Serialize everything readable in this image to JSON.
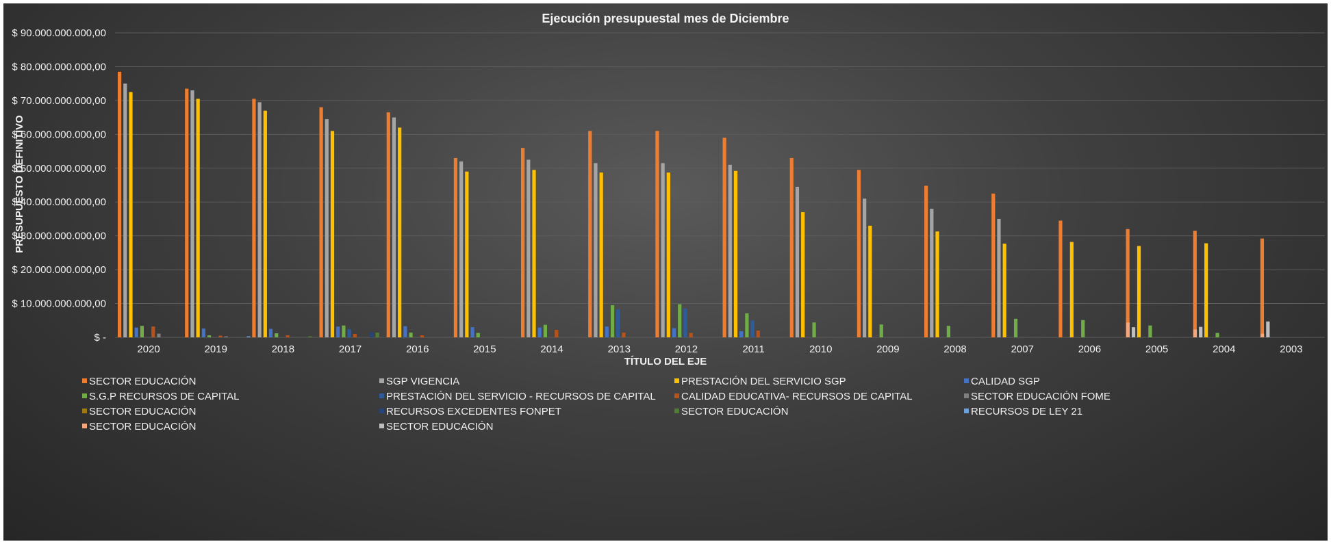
{
  "chart_data": {
    "type": "bar",
    "title": "Ejecución presupuestal mes de Diciembre",
    "xlabel": "TÍTULO DEL EJE",
    "ylabel": "PRESUPUESTO DEFINITIVO",
    "ylim": [
      0,
      90000000000
    ],
    "y_ticks": [
      {
        "value": 0,
        "label": "$ -"
      },
      {
        "value": 10000000000,
        "label": "$ 10.000.000.000,00"
      },
      {
        "value": 20000000000,
        "label": "$ 20.000.000.000,00"
      },
      {
        "value": 30000000000,
        "label": "$ 30.000.000.000,00"
      },
      {
        "value": 40000000000,
        "label": "$ 40.000.000.000,00"
      },
      {
        "value": 50000000000,
        "label": "$ 50.000.000.000,00"
      },
      {
        "value": 60000000000,
        "label": "$ 60.000.000.000,00"
      },
      {
        "value": 70000000000,
        "label": "$ 70.000.000.000,00"
      },
      {
        "value": 80000000000,
        "label": "$ 80.000.000.000,00"
      },
      {
        "value": 90000000000,
        "label": "$ 90.000.000.000,00"
      }
    ],
    "grid": true,
    "legend_position": "bottom",
    "categories": [
      "2020",
      "2019",
      "2018",
      "2017",
      "2016",
      "2015",
      "2014",
      "2013",
      "2012",
      "2011",
      "2010",
      "2009",
      "2008",
      "2007",
      "2006",
      "2005",
      "2004",
      "2003"
    ],
    "series": [
      {
        "name": "SECTOR EDUCACIÓN",
        "color": "#ed7d31",
        "values": [
          78500000000,
          73500000000,
          70500000000,
          68000000000,
          66500000000,
          53000000000,
          56000000000,
          61000000000,
          61000000000,
          59000000000,
          53000000000,
          49500000000,
          44800000000,
          42500000000,
          34500000000,
          32000000000,
          31500000000,
          29200000000
        ]
      },
      {
        "name": "SGP VIGENCIA",
        "color": "#a5a5a5",
        "values": [
          75000000000,
          73000000000,
          69500000000,
          64500000000,
          65000000000,
          52000000000,
          52500000000,
          51500000000,
          51500000000,
          51000000000,
          44500000000,
          41000000000,
          38000000000,
          35000000000,
          0,
          0,
          0,
          0
        ]
      },
      {
        "name": "PRESTACIÓN DEL SERVICIO SGP",
        "color": "#ffc000",
        "values": [
          72500000000,
          70500000000,
          67000000000,
          61000000000,
          62000000000,
          49000000000,
          49500000000,
          48700000000,
          48700000000,
          49200000000,
          37000000000,
          33000000000,
          31300000000,
          27700000000,
          28200000000,
          27000000000,
          27800000000,
          0
        ]
      },
      {
        "name": "CALIDAD SGP",
        "color": "#4472c4",
        "values": [
          2900000000,
          2600000000,
          2500000000,
          3200000000,
          3300000000,
          3000000000,
          2900000000,
          3200000000,
          2700000000,
          1800000000,
          0,
          0,
          0,
          0,
          0,
          0,
          0,
          0
        ]
      },
      {
        "name": "S.G.P RECURSOS DE CAPITAL",
        "color": "#70ad47",
        "values": [
          3400000000,
          600000000,
          1200000000,
          3500000000,
          1400000000,
          1300000000,
          3700000000,
          9500000000,
          9800000000,
          7100000000,
          4400000000,
          3800000000,
          3400000000,
          5500000000,
          5100000000,
          3500000000,
          1300000000,
          0
        ]
      },
      {
        "name": "PRESTACIÓN DEL SERVICIO - RECURSOS DE CAPITAL",
        "color": "#2e5c9a",
        "values": [
          0,
          0,
          0,
          2400000000,
          0,
          0,
          0,
          8300000000,
          8500000000,
          5000000000,
          0,
          0,
          0,
          0,
          0,
          0,
          0,
          0
        ]
      },
      {
        "name": "CALIDAD EDUCATIVA- RECURSOS DE CAPITAL",
        "color": "#b8521b",
        "values": [
          3200000000,
          500000000,
          600000000,
          1000000000,
          600000000,
          0,
          2200000000,
          1400000000,
          1300000000,
          2000000000,
          0,
          0,
          0,
          0,
          0,
          0,
          0,
          0
        ]
      },
      {
        "name": "SECTOR EDUCACIÓN FOME",
        "color": "#7f7f7f",
        "values": [
          1100000000,
          300000000,
          0,
          0,
          0,
          0,
          0,
          0,
          0,
          0,
          0,
          0,
          0,
          0,
          0,
          0,
          0,
          0
        ]
      },
      {
        "name": "SECTOR EDUCACIÓN",
        "color": "#9c7a10",
        "values": [
          0,
          0,
          0,
          0,
          0,
          0,
          0,
          0,
          0,
          0,
          0,
          0,
          0,
          0,
          0,
          0,
          0,
          0
        ]
      },
      {
        "name": "RECURSOS EXCEDENTES FONPET",
        "color": "#26447a",
        "values": [
          0,
          0,
          0,
          1500000000,
          0,
          0,
          0,
          0,
          0,
          0,
          0,
          0,
          0,
          0,
          0,
          0,
          0,
          0
        ]
      },
      {
        "name": "SECTOR EDUCACIÓN",
        "color": "#4e7d31",
        "values": [
          0,
          0,
          300000000,
          1400000000,
          0,
          0,
          0,
          0,
          0,
          0,
          0,
          0,
          0,
          0,
          0,
          0,
          0,
          0
        ]
      },
      {
        "name": "RECURSOS DE LEY 21",
        "color": "#6fa0d8",
        "values": [
          0,
          300000000,
          0,
          0,
          0,
          0,
          0,
          0,
          0,
          0,
          0,
          0,
          0,
          0,
          0,
          0,
          0,
          0
        ]
      },
      {
        "name": "SECTOR EDUCACIÓN",
        "color": "#f4a77a",
        "values": [
          0,
          0,
          0,
          0,
          0,
          0,
          0,
          0,
          0,
          0,
          0,
          0,
          0,
          0,
          4400000000,
          2300000000,
          1100000000,
          0
        ]
      },
      {
        "name": "SECTOR EDUCACIÓN",
        "color": "#bfbfbf",
        "values": [
          0,
          0,
          0,
          0,
          0,
          0,
          0,
          0,
          0,
          0,
          0,
          0,
          0,
          0,
          3000000000,
          3100000000,
          4700000000,
          100000000
        ]
      }
    ]
  }
}
